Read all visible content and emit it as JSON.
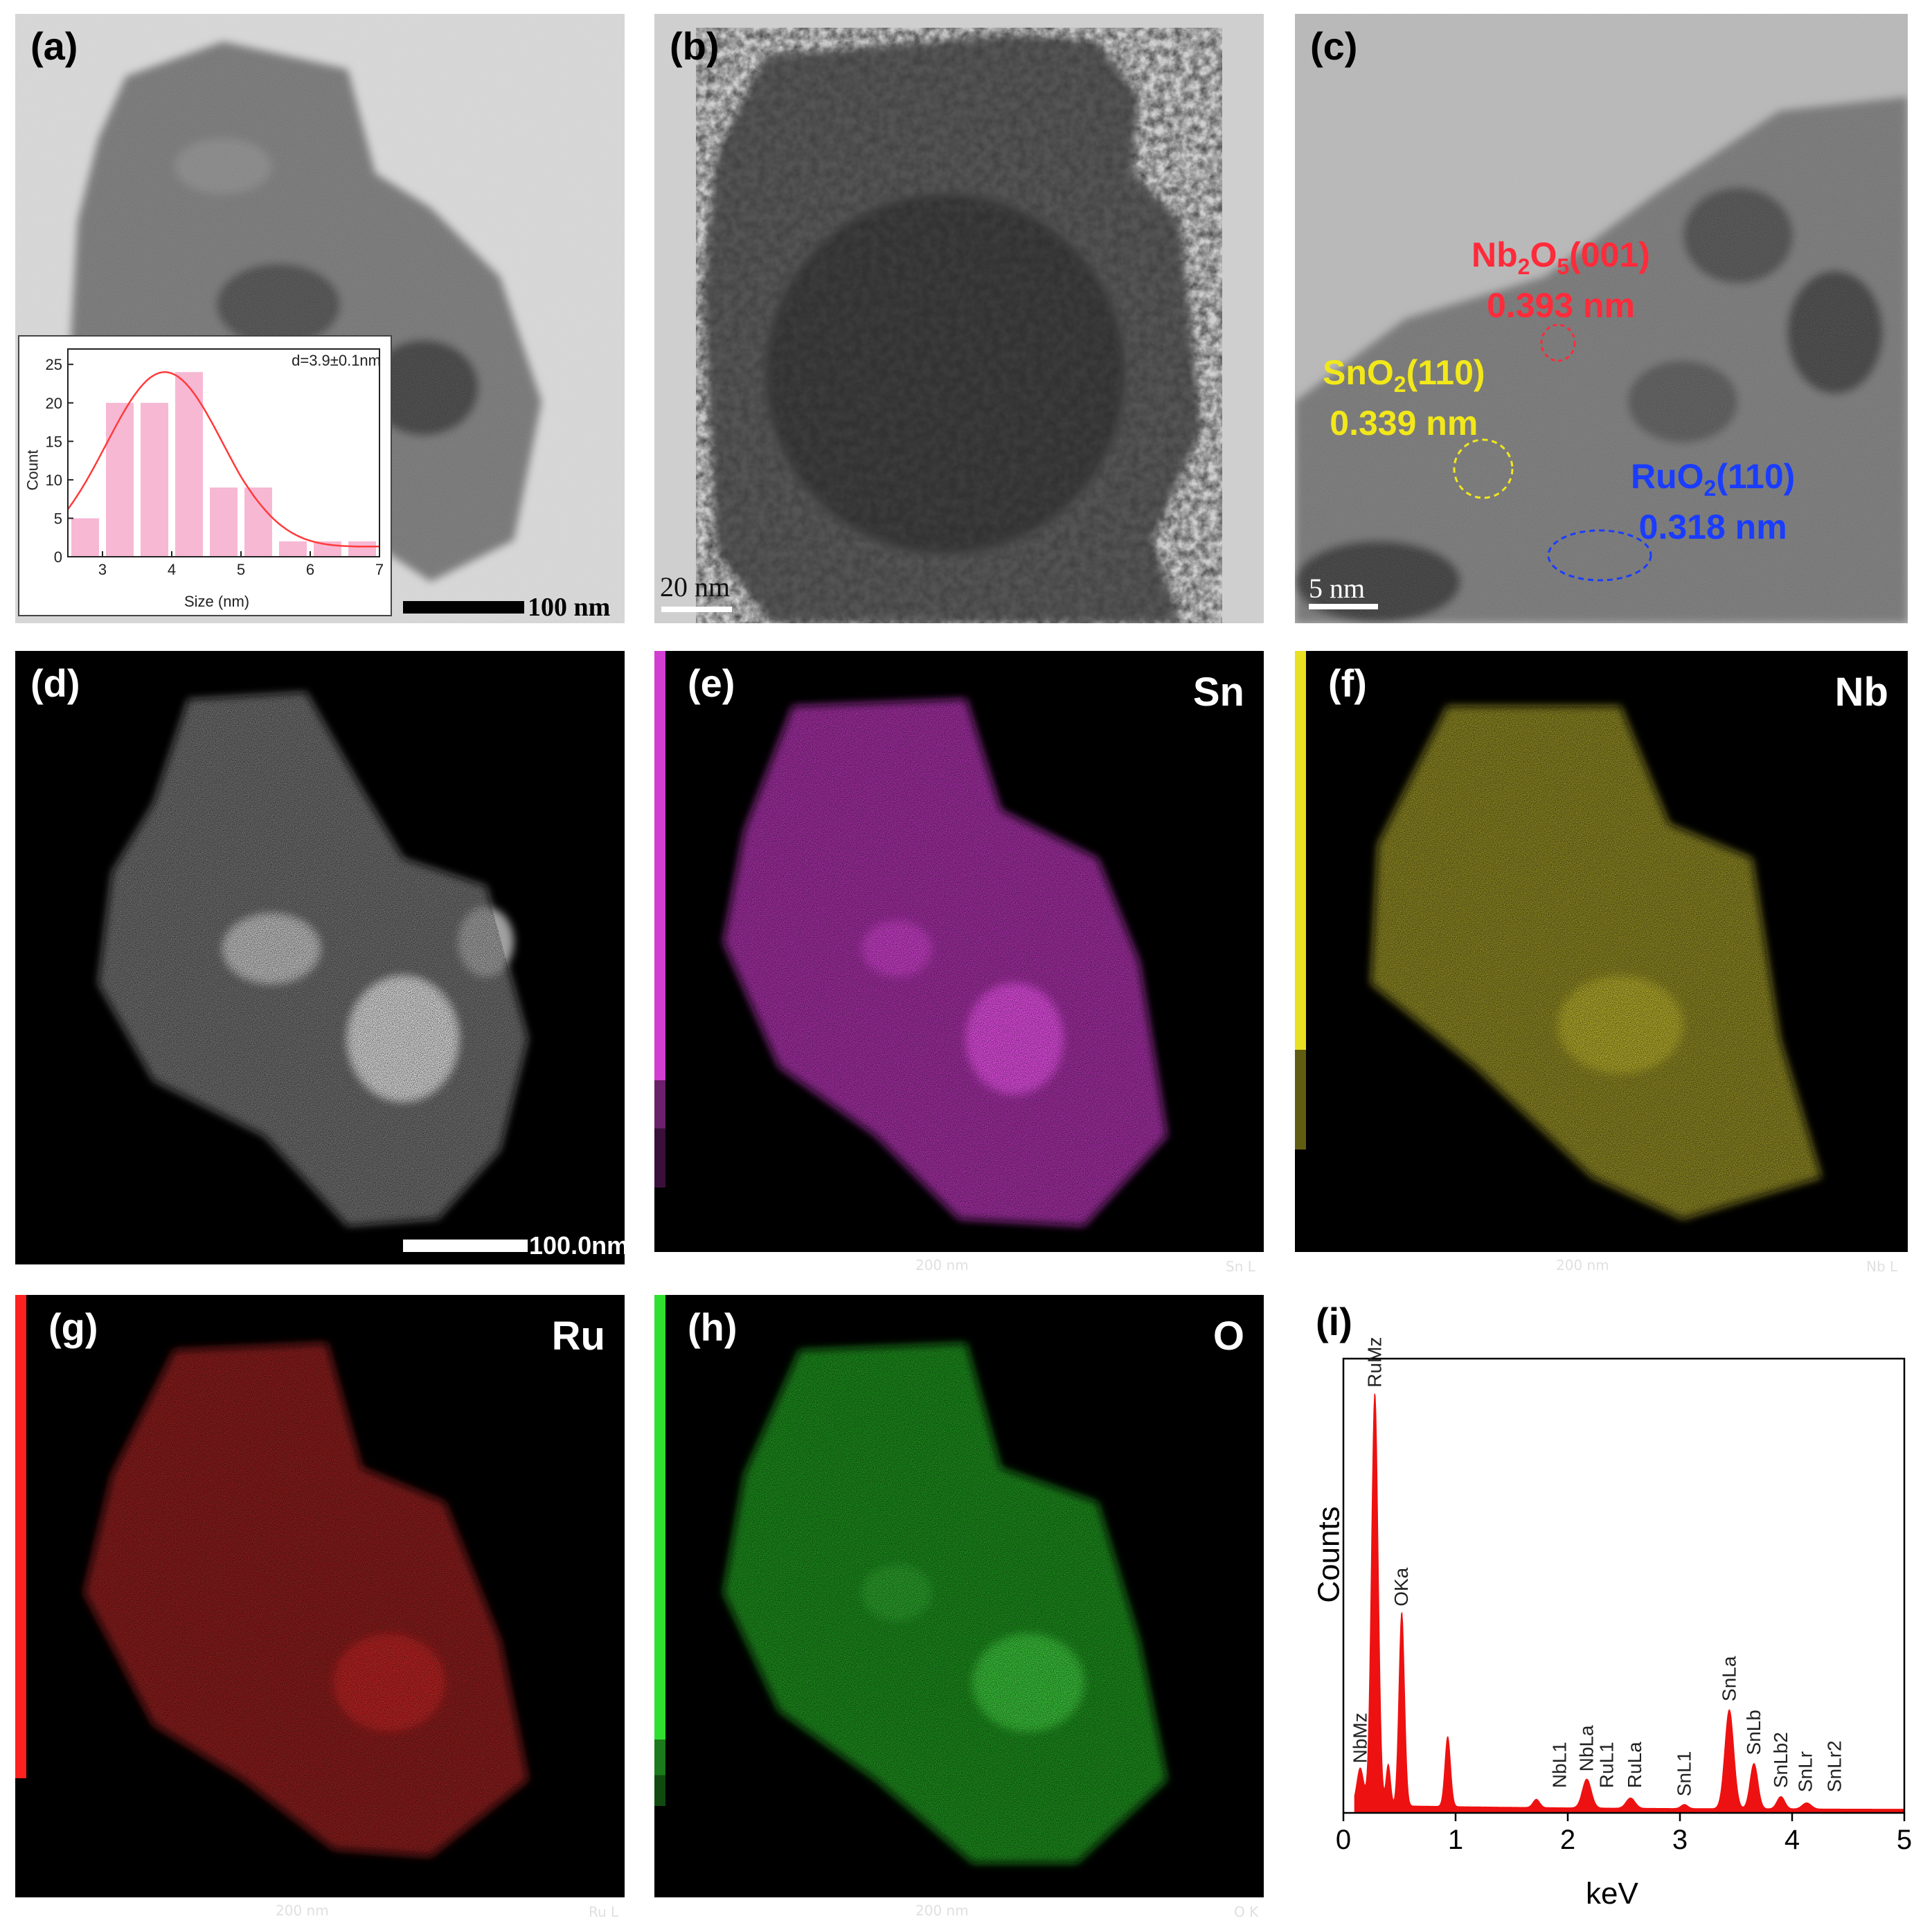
{
  "panels": {
    "a": {
      "label": "(a)",
      "scalebar": "100 nm"
    },
    "b": {
      "label": "(b)",
      "scalebar": "20 nm"
    },
    "c": {
      "label": "(c)",
      "scalebar": "5 nm",
      "annotations": {
        "nb": {
          "compound": "Nb",
          "sub1": "2",
          "mid": "O",
          "sub2": "5",
          "plane": "(001)",
          "spacing": "0.393 nm",
          "color": "#ff2a3a"
        },
        "sn": {
          "compound": "SnO",
          "sub1": "2",
          "plane": "(110)",
          "spacing": "0.339 nm",
          "color": "#f2e81a"
        },
        "ru": {
          "compound": "RuO",
          "sub1": "2",
          "plane": "(110)",
          "spacing": "0.318 nm",
          "color": "#1a3cff"
        }
      }
    },
    "d": {
      "label": "(d)",
      "scalebar": "100.0nm"
    },
    "e": {
      "label": "(e)",
      "element": "Sn",
      "scalebar": "200 nm",
      "code": "Sn L",
      "color": "#e040e0"
    },
    "f": {
      "label": "(f)",
      "element": "Nb",
      "scalebar": "200 nm",
      "code": "Nb L",
      "color": "#e8e020"
    },
    "g": {
      "label": "(g)",
      "element": "Ru",
      "scalebar": "200 nm",
      "code": "Ru L",
      "color": "#ff2020"
    },
    "h": {
      "label": "(h)",
      "element": "O",
      "scalebar": "200 nm",
      "code": "O K",
      "color": "#30e030"
    },
    "i": {
      "label": "(i)"
    }
  },
  "inset_chart": {
    "type": "bar",
    "annotation": "d=3.9±0.1nm",
    "xlabel": "Size (nm)",
    "ylabel": "Count",
    "xlim": [
      2.5,
      7
    ],
    "ylim": [
      0,
      27
    ],
    "xticks": [
      3,
      4,
      5,
      6,
      7
    ],
    "yticks": [
      0,
      5,
      10,
      15,
      20,
      25
    ],
    "bar_width": 0.4,
    "bars": [
      {
        "x": 2.75,
        "value": 5
      },
      {
        "x": 3.25,
        "value": 20
      },
      {
        "x": 3.75,
        "value": 20
      },
      {
        "x": 4.25,
        "value": 24
      },
      {
        "x": 4.75,
        "value": 9
      },
      {
        "x": 5.25,
        "value": 9
      },
      {
        "x": 5.75,
        "value": 2
      },
      {
        "x": 6.25,
        "value": 2
      },
      {
        "x": 6.75,
        "value": 2
      }
    ],
    "fit": {
      "mean": 3.9,
      "amplitude": 24,
      "sigma": 0.85
    },
    "bar_color": "#f7b8d4",
    "fit_color": "#ff3b3b"
  },
  "chart_data": {
    "type": "area",
    "xlabel": "keV",
    "ylabel": "Counts",
    "xlim": [
      0,
      5
    ],
    "ylim": [
      0,
      1.1
    ],
    "xticks": [
      0,
      1,
      2,
      3,
      4,
      5
    ],
    "color": "#ee1111",
    "peaks": [
      {
        "x": 0.15,
        "y": 0.09,
        "w": 0.03
      },
      {
        "x": 0.28,
        "y": 1.0,
        "w": 0.03
      },
      {
        "x": 0.4,
        "y": 0.1,
        "w": 0.02
      },
      {
        "x": 0.52,
        "y": 0.47,
        "w": 0.025
      },
      {
        "x": 0.93,
        "y": 0.17,
        "w": 0.025
      },
      {
        "x": 1.72,
        "y": 0.02,
        "w": 0.03
      },
      {
        "x": 2.17,
        "y": 0.07,
        "w": 0.04
      },
      {
        "x": 2.56,
        "y": 0.025,
        "w": 0.04
      },
      {
        "x": 3.04,
        "y": 0.01,
        "w": 0.03
      },
      {
        "x": 3.44,
        "y": 0.24,
        "w": 0.04
      },
      {
        "x": 3.66,
        "y": 0.11,
        "w": 0.035
      },
      {
        "x": 3.9,
        "y": 0.03,
        "w": 0.035
      },
      {
        "x": 4.13,
        "y": 0.015,
        "w": 0.04
      }
    ],
    "labels": [
      {
        "text": "RuMz",
        "x": 0.28,
        "y": 1.02
      },
      {
        "text": "OKa",
        "x": 0.52,
        "y": 0.49
      },
      {
        "text": "NbMz",
        "x": 0.15,
        "y": 0.11
      },
      {
        "text": "NbL1",
        "x": 1.93,
        "y": 0.05
      },
      {
        "text": "NbLa",
        "x": 2.17,
        "y": 0.09
      },
      {
        "text": "RuL1",
        "x": 2.35,
        "y": 0.05
      },
      {
        "text": "RuLa",
        "x": 2.6,
        "y": 0.05
      },
      {
        "text": "SnL1",
        "x": 3.04,
        "y": 0.03
      },
      {
        "text": "SnLa",
        "x": 3.44,
        "y": 0.26
      },
      {
        "text": "SnLb",
        "x": 3.66,
        "y": 0.13
      },
      {
        "text": "SnLb2",
        "x": 3.9,
        "y": 0.05
      },
      {
        "text": "SnLr",
        "x": 4.12,
        "y": 0.04
      },
      {
        "text": "SnLr2",
        "x": 4.38,
        "y": 0.04
      }
    ]
  }
}
